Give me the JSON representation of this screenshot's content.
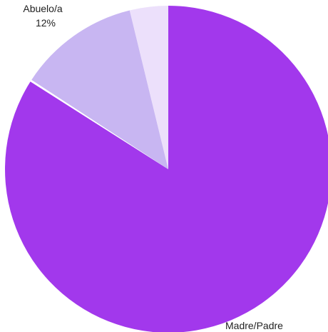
{
  "chart_data": {
    "type": "pie",
    "title": "",
    "start_angle_deg": 0,
    "direction": "clockwise",
    "slices": [
      {
        "label": "Madre/Padre",
        "percent_label": "84%",
        "value": 84,
        "color": "#a238ec"
      },
      {
        "label": "",
        "percent_label": "",
        "value": 0.2,
        "color": "#ffffff"
      },
      {
        "label": "Abuelo/a",
        "percent_label": "12%",
        "value": 12,
        "color": "#c8b6f2"
      },
      {
        "label": "",
        "percent_label": "",
        "value": 3.8,
        "color": "#ece0fb"
      }
    ]
  }
}
